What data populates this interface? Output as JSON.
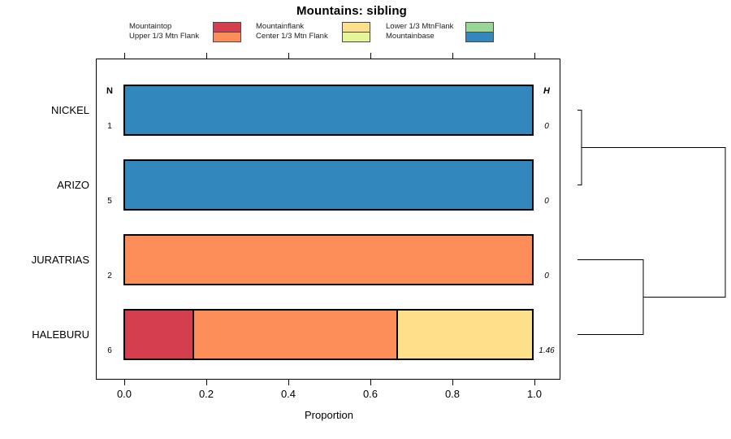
{
  "title": "Mountains: sibling",
  "legend": {
    "columns": [
      {
        "items": [
          {
            "label": "Mountaintop",
            "color": "#D53E4F"
          },
          {
            "label": "Upper 1/3 Mtn Flank",
            "color": "#FC8D59"
          }
        ]
      },
      {
        "items": [
          {
            "label": "Mountainflank",
            "color": "#FEE08B"
          },
          {
            "label": "Center 1/3 Mtn Flank",
            "color": "#E6F598"
          }
        ]
      },
      {
        "items": [
          {
            "label": "Lower 1/3 MtnFlank",
            "color": "#99D594"
          },
          {
            "label": "Mountainbase",
            "color": "#3288BD"
          }
        ]
      }
    ]
  },
  "chart_data": {
    "type": "bar",
    "orientation": "horizontal",
    "stacked": true,
    "title": "Mountains: sibling",
    "xlabel": "Proportion",
    "xlim": [
      0,
      1
    ],
    "xticks": [
      "0.0",
      "0.2",
      "0.4",
      "0.6",
      "0.8",
      "1.0"
    ],
    "grid": false,
    "count_header": "N",
    "entropy_header": "H",
    "categories": [
      "NICKEL",
      "ARIZO",
      "JURATRIAS",
      "HALEBURU"
    ],
    "classes": [
      "Mountaintop",
      "Upper 1/3 Mtn Flank",
      "Mountainflank",
      "Center 1/3 Mtn Flank",
      "Lower 1/3 MtnFlank",
      "Mountainbase"
    ],
    "rows": [
      {
        "category": "NICKEL",
        "n": "1",
        "h": "0",
        "segments": [
          {
            "class": "Mountainbase",
            "color": "#3288BD",
            "value": 1.0
          }
        ]
      },
      {
        "category": "ARIZO",
        "n": "5",
        "h": "0",
        "segments": [
          {
            "class": "Mountainbase",
            "color": "#3288BD",
            "value": 1.0
          }
        ]
      },
      {
        "category": "JURATRIAS",
        "n": "2",
        "h": "0",
        "segments": [
          {
            "class": "Upper 1/3 Mtn Flank",
            "color": "#FC8D59",
            "value": 1.0
          }
        ]
      },
      {
        "category": "HALEBURU",
        "n": "6",
        "h": "1.46",
        "segments": [
          {
            "class": "Mountaintop",
            "color": "#D53E4F",
            "value": 0.167
          },
          {
            "class": "Upper 1/3 Mtn Flank",
            "color": "#FC8D59",
            "value": 0.5
          },
          {
            "class": "Mountainflank",
            "color": "#FEE08B",
            "value": 0.333
          }
        ]
      }
    ],
    "dendrogram": {
      "position": "right-margin",
      "merges": [
        {
          "children": [
            "NICKEL",
            "ARIZO"
          ],
          "height_frac": 0.027
        },
        {
          "children": [
            "JURATRIAS",
            "HALEBURU"
          ],
          "height_frac": 0.445
        },
        {
          "children": [
            "merge-0",
            "merge-1"
          ],
          "height_frac": 1.0
        }
      ]
    }
  }
}
